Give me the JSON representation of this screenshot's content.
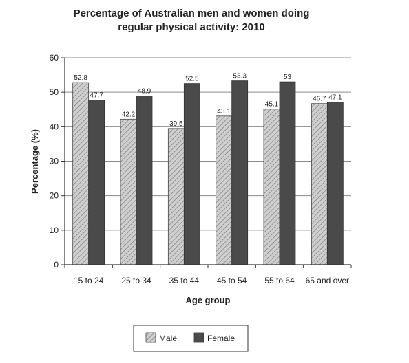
{
  "chart_data": {
    "type": "bar",
    "title": [
      "Percentage of Australian men and women doing",
      "regular physical activity: 2010"
    ],
    "xlabel": "Age group",
    "ylabel": "Percentage (%)",
    "ylim": [
      0,
      60
    ],
    "yticks": [
      0,
      10,
      20,
      30,
      40,
      50,
      60
    ],
    "grid": true,
    "legend_position": "bottom",
    "categories": [
      "15 to 24",
      "25 to 34",
      "35 to 44",
      "45 to 54",
      "55 to 64",
      "65 and over"
    ],
    "series": [
      {
        "name": "Male",
        "values": [
          52.8,
          42.2,
          39.5,
          43.1,
          45.1,
          46.7
        ],
        "labels": [
          "52.8",
          "42.2",
          "39.5",
          "43.1",
          "45.1",
          "46.7"
        ],
        "color": "#bdbdbd",
        "pattern": "hatched"
      },
      {
        "name": "Female",
        "values": [
          47.7,
          48.9,
          52.5,
          53.3,
          53,
          47.1
        ],
        "labels": [
          "47.7",
          "48.9",
          "52.5",
          "53.3",
          "53",
          "47.1"
        ],
        "color": "#4a4a4a",
        "pattern": "solid"
      }
    ]
  }
}
